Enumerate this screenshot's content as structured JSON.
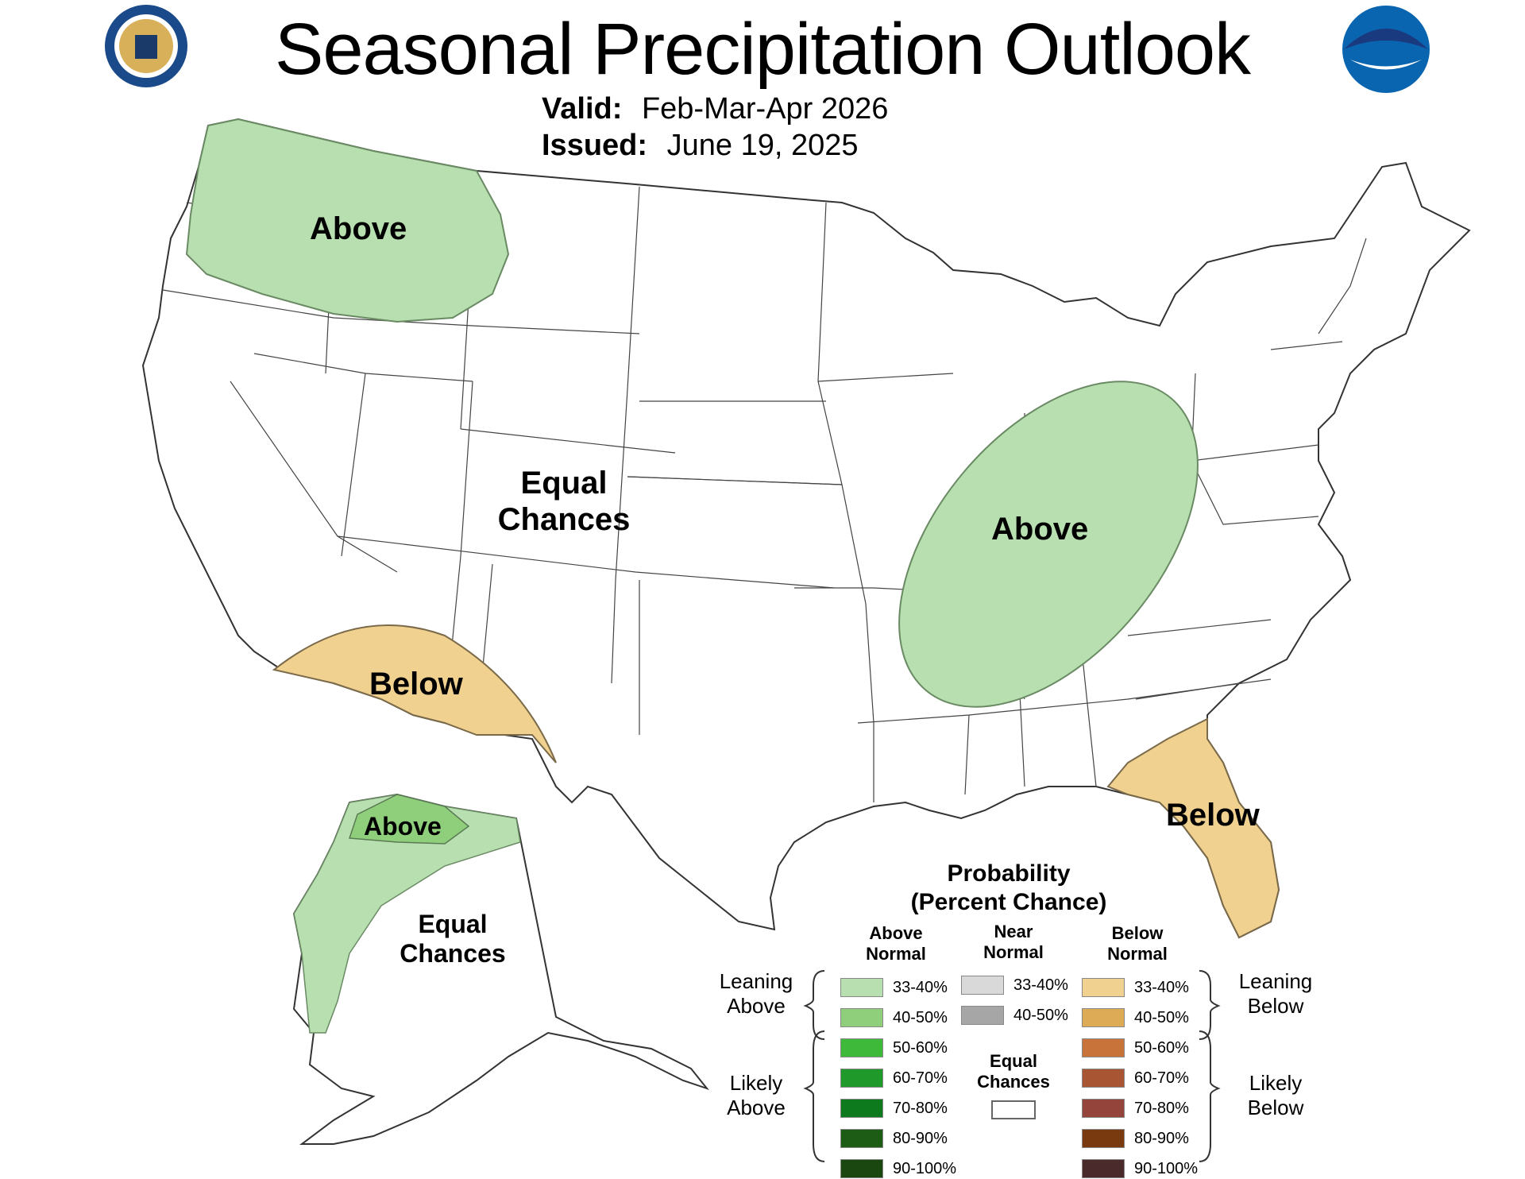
{
  "header": {
    "title": "Seasonal Precipitation Outlook",
    "valid_label": "Valid:",
    "valid_value": "Feb-Mar-Apr 2026",
    "issued_label": "Issued:",
    "issued_value": "June 19, 2025",
    "commerce_seal_text": "DEPARTMENT OF COMMERCE · UNITED STATES OF AMERICA",
    "noaa_logo_text": "NOAA"
  },
  "map": {
    "regions": [
      {
        "id": "northwest",
        "label": "Above",
        "category": "above",
        "probability": "33-40%"
      },
      {
        "id": "west",
        "label": "Equal Chances",
        "category": "equal",
        "probability": null
      },
      {
        "id": "ohio-valley",
        "label": "Above",
        "category": "above",
        "probability": "33-40%"
      },
      {
        "id": "southwest",
        "label": "Below",
        "category": "below",
        "probability": "33-40%"
      },
      {
        "id": "florida",
        "label": "Below",
        "category": "below",
        "probability": "33-40%"
      },
      {
        "id": "alaska-north",
        "label": "Above",
        "category": "above",
        "probability": "40-50%"
      },
      {
        "id": "alaska-interior",
        "label": "Equal Chances",
        "category": "equal",
        "probability": null
      }
    ],
    "colors": {
      "above_33_40": "#b7dfaf",
      "above_40_50": "#8fcf7c",
      "below_33_40": "#f0d18f",
      "equal": "#ffffff",
      "border": "#333333"
    }
  },
  "legend": {
    "title_line1": "Probability",
    "title_line2": "(Percent Chance)",
    "above_head_line1": "Above",
    "above_head_line2": "Normal",
    "near_head_line1": "Near",
    "near_head_line2": "Normal",
    "below_head_line1": "Below",
    "below_head_line2": "Normal",
    "leaning_above_line1": "Leaning",
    "leaning_above_line2": "Above",
    "likely_above_line1": "Likely",
    "likely_above_line2": "Above",
    "leaning_below_line1": "Leaning",
    "leaning_below_line2": "Below",
    "likely_below_line1": "Likely",
    "likely_below_line2": "Below",
    "equal_line1": "Equal",
    "equal_line2": "Chances",
    "above": [
      {
        "range": "33-40%",
        "color": "#b7dfaf"
      },
      {
        "range": "40-50%",
        "color": "#8fcf7c"
      },
      {
        "range": "50-60%",
        "color": "#3fb93a"
      },
      {
        "range": "60-70%",
        "color": "#1f9a2a"
      },
      {
        "range": "70-80%",
        "color": "#0e7a1e"
      },
      {
        "range": "80-90%",
        "color": "#1d5c15"
      },
      {
        "range": "90-100%",
        "color": "#1a4710"
      }
    ],
    "near": [
      {
        "range": "33-40%",
        "color": "#d9d9d9"
      },
      {
        "range": "40-50%",
        "color": "#a6a6a6"
      }
    ],
    "below": [
      {
        "range": "33-40%",
        "color": "#f0d18f"
      },
      {
        "range": "40-50%",
        "color": "#ddab55"
      },
      {
        "range": "50-60%",
        "color": "#c7733a"
      },
      {
        "range": "60-70%",
        "color": "#a75532"
      },
      {
        "range": "70-80%",
        "color": "#94443a"
      },
      {
        "range": "80-90%",
        "color": "#7a3a10"
      },
      {
        "range": "90-100%",
        "color": "#4a2a2a"
      }
    ]
  }
}
